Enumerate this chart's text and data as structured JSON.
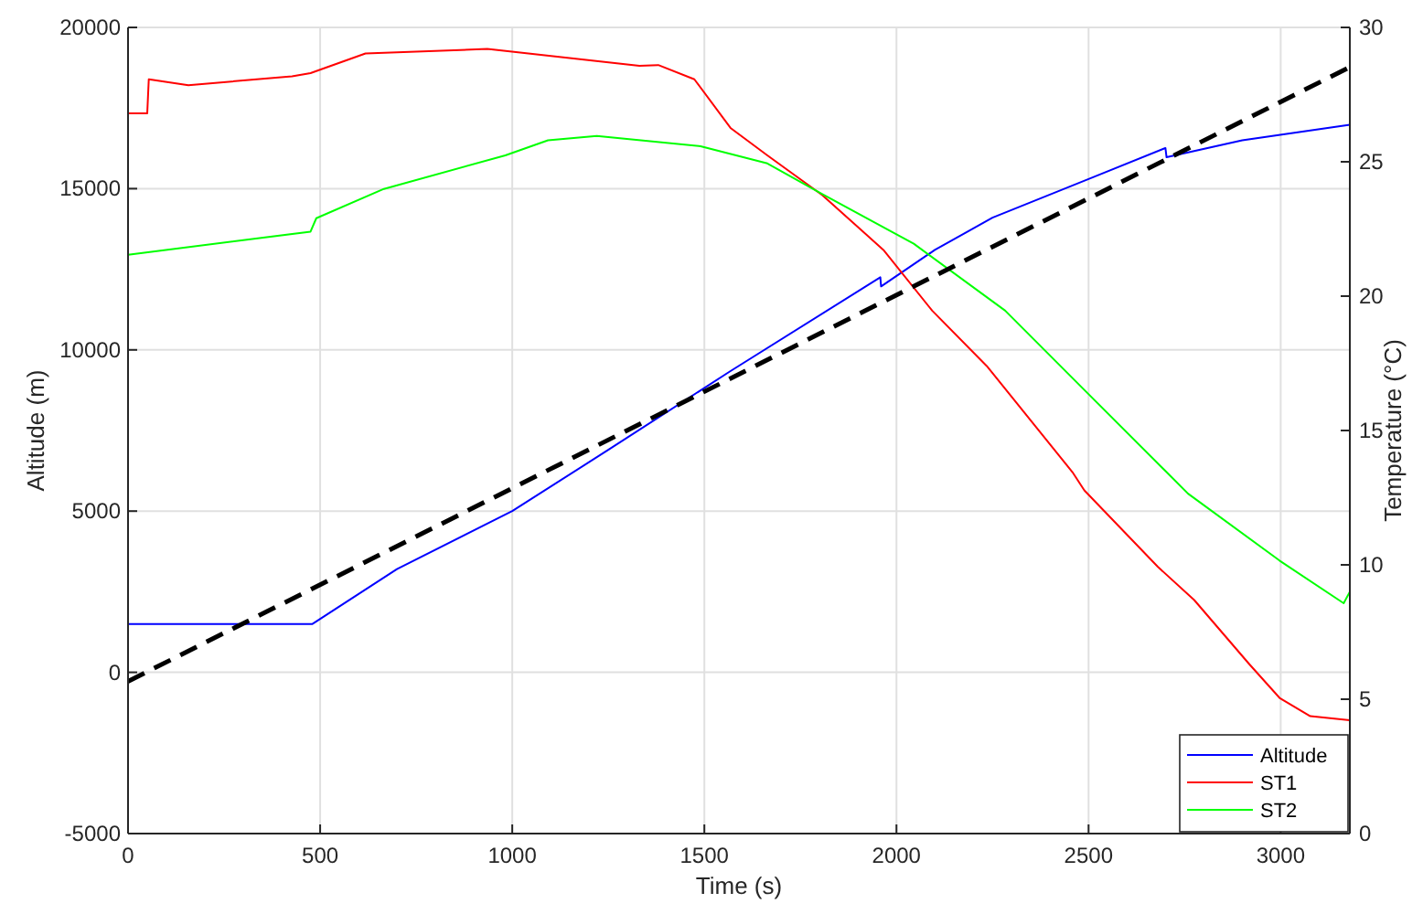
{
  "chart_data": {
    "type": "line",
    "xlabel": "Time (s)",
    "ylabel": "Altitude (m)",
    "y2label": "Temperature (°C)",
    "xlim": [
      0,
      3180
    ],
    "xticks": [
      0,
      500,
      1000,
      1500,
      2000,
      2500,
      3000
    ],
    "ylim": [
      -5000,
      20000
    ],
    "yticks": [
      -5000,
      0,
      5000,
      10000,
      15000,
      20000
    ],
    "y2lim": [
      0,
      30
    ],
    "y2ticks": [
      0,
      5,
      10,
      15,
      20,
      25,
      30
    ],
    "grid": true,
    "legend": "bottom right",
    "series": [
      {
        "name": "Altitude",
        "color": "#0000ff",
        "x": [
          0,
          480,
          700,
          1000,
          1250,
          1568,
          1958,
          1960,
          2100,
          2250,
          2500,
          2700,
          2703,
          2900,
          3180
        ],
        "values": [
          1500,
          1500,
          3200,
          5000,
          6900,
          9342,
          12250,
          11970,
          13100,
          14100,
          15300,
          16260,
          15975,
          16500,
          16980
        ]
      },
      {
        "name": "ST1",
        "color": "#ff0000",
        "axis": "y2",
        "x": [
          0,
          50,
          54,
          157,
          427,
          475,
          618,
          935,
          1331,
          1380,
          1474,
          1568,
          1664,
          1807,
          1966,
          2093,
          2235,
          2458,
          2489,
          2680,
          2775,
          2918,
          2997,
          3077,
          3180
        ],
        "values": [
          26.8,
          26.8,
          28.07,
          27.85,
          28.18,
          28.3,
          29.03,
          29.2,
          28.57,
          28.6,
          28.07,
          26.26,
          25.24,
          23.76,
          21.72,
          19.46,
          17.4,
          13.45,
          12.77,
          9.93,
          8.69,
          6.31,
          5.05,
          4.37,
          4.22
        ]
      },
      {
        "name": "ST2",
        "color": "#00ff00",
        "axis": "y2",
        "x": [
          0,
          475,
          490,
          666,
          982,
          1093,
          1220,
          1490,
          1664,
          1807,
          2045,
          2283,
          2489,
          2703,
          2759,
          2997,
          3164,
          3180
        ],
        "values": [
          21.54,
          22.4,
          22.9,
          23.99,
          25.24,
          25.8,
          25.96,
          25.58,
          24.94,
          23.8,
          21.95,
          19.46,
          16.51,
          13.45,
          12.65,
          10.16,
          8.57,
          9.0
        ]
      },
      {
        "color": "#000000",
        "line_style": "dashed",
        "x": [
          0,
          3180
        ],
        "values": [
          -280,
          18770
        ]
      }
    ]
  }
}
